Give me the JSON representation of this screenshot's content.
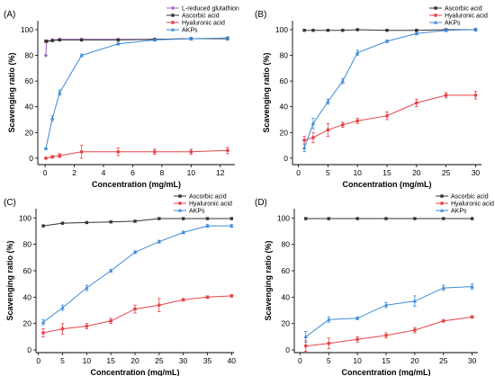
{
  "colors": {
    "black": "#333333",
    "red": "#e8454a",
    "blue": "#3d8bd9",
    "purple": "#9d5fc4"
  },
  "chart_data": [
    {
      "panel_label": "(A)",
      "type": "line",
      "xlabel": "Concentration (mg/mL)",
      "ylabel": "Scavenging ratio (%)",
      "xlim": [
        -0.5,
        13
      ],
      "ylim": [
        -5,
        107
      ],
      "xticks": [
        0,
        2,
        4,
        6,
        8,
        10,
        12
      ],
      "yticks": [
        0,
        20,
        40,
        60,
        80,
        100
      ],
      "legend_position": "top-right",
      "series": [
        {
          "name": "L-reduced glutathion",
          "color": "purple",
          "marker": "diamond",
          "x": [
            0.05,
            0.1,
            0.5,
            1,
            2.5,
            5,
            7.5,
            10,
            12.5
          ],
          "y": [
            80,
            91,
            92,
            92.5,
            92.5,
            92.5,
            92.5,
            93,
            93
          ],
          "err": [
            0,
            0,
            0,
            0,
            0,
            0,
            0,
            0,
            0
          ]
        },
        {
          "name": "Ascorbic acid",
          "color": "black",
          "marker": "square",
          "x": [
            0.05,
            0.1,
            0.5,
            1,
            2.5,
            5,
            7.5,
            10,
            12.5
          ],
          "y": [
            91,
            91,
            91.5,
            92,
            92,
            92,
            92.5,
            93,
            93
          ],
          "err": [
            0,
            0,
            0,
            0,
            0,
            0,
            0,
            0,
            0
          ]
        },
        {
          "name": "Hyaluronic acid",
          "color": "red",
          "marker": "circle",
          "x": [
            0.05,
            0.5,
            1,
            2.5,
            5,
            7.5,
            10,
            12.5
          ],
          "y": [
            0,
            1,
            2,
            5,
            5,
            5,
            5,
            6
          ],
          "err": [
            0,
            1,
            1.5,
            5,
            3,
            2,
            2,
            2.5
          ]
        },
        {
          "name": "AKPs",
          "color": "blue",
          "marker": "triangle",
          "x": [
            0.05,
            0.5,
            1,
            2.5,
            5,
            7.5,
            10,
            12.5
          ],
          "y": [
            7.5,
            31,
            51,
            80,
            89,
            92,
            93,
            93.5
          ],
          "err": [
            0.5,
            2,
            2,
            1,
            1,
            1,
            1,
            1
          ]
        }
      ]
    },
    {
      "panel_label": "(B)",
      "type": "line",
      "xlabel": "Concentration (mg/mL)",
      "ylabel": "Scavenging ratio (%)",
      "xlim": [
        -1,
        31
      ],
      "ylim": [
        -5,
        107
      ],
      "xticks": [
        0,
        5,
        10,
        15,
        20,
        25,
        30
      ],
      "yticks": [
        0,
        20,
        40,
        60,
        80,
        100
      ],
      "legend_position": "top-left",
      "series": [
        {
          "name": "Ascorbic acid",
          "color": "black",
          "marker": "square",
          "x": [
            1,
            2.5,
            5,
            7.5,
            10,
            15,
            20,
            25,
            30
          ],
          "y": [
            99.5,
            99.5,
            99.5,
            99.5,
            100,
            99.5,
            99.5,
            100,
            100
          ],
          "err": [
            0,
            0,
            0,
            0,
            0,
            0,
            0,
            0,
            0
          ]
        },
        {
          "name": "Hyaluronic acid",
          "color": "red",
          "marker": "circle",
          "x": [
            1,
            2.5,
            5,
            7.5,
            10,
            15,
            20,
            25,
            30
          ],
          "y": [
            14,
            16,
            22,
            26,
            29,
            33,
            43,
            49,
            49
          ],
          "err": [
            3,
            4,
            5,
            2,
            2,
            3,
            3,
            2,
            3
          ]
        },
        {
          "name": "AKPs",
          "color": "blue",
          "marker": "triangle",
          "x": [
            1,
            2.5,
            5,
            7.5,
            10,
            15,
            20,
            25,
            30
          ],
          "y": [
            8,
            27,
            44,
            60,
            82,
            91,
            97,
            99.5,
            100
          ],
          "err": [
            3,
            4,
            2,
            2,
            2,
            1,
            1,
            1,
            1
          ]
        }
      ]
    },
    {
      "panel_label": "(C)",
      "type": "line",
      "xlabel": "Concentration (mg/mL)",
      "ylabel": "Scavenging ratio (%)",
      "xlim": [
        -0.5,
        40.5
      ],
      "ylim": [
        -2,
        107
      ],
      "xticks": [
        0,
        5,
        10,
        15,
        20,
        25,
        30,
        35,
        40
      ],
      "yticks": [
        0,
        20,
        40,
        60,
        80,
        100
      ],
      "legend_position": "top-right",
      "series": [
        {
          "name": "Ascorbic acid",
          "color": "black",
          "marker": "square",
          "x": [
            1,
            5,
            10,
            15,
            20,
            25,
            30,
            35,
            40
          ],
          "y": [
            94,
            96,
            96.5,
            97,
            97.5,
            99.5,
            99.5,
            99.5,
            99.5
          ],
          "err": [
            0,
            0,
            0,
            0,
            0,
            0,
            0,
            0,
            0
          ]
        },
        {
          "name": "Hyaluronic acid",
          "color": "red",
          "marker": "circle",
          "x": [
            1,
            5,
            10,
            15,
            20,
            25,
            30,
            35,
            40
          ],
          "y": [
            13,
            16,
            18,
            22,
            31,
            34,
            38,
            40,
            41
          ],
          "err": [
            3,
            4,
            2,
            2,
            3,
            5,
            1,
            1,
            1
          ]
        },
        {
          "name": "AKPs",
          "color": "blue",
          "marker": "triangle",
          "x": [
            1,
            5,
            10,
            15,
            20,
            25,
            30,
            35,
            40
          ],
          "y": [
            21,
            32,
            47,
            60,
            74,
            82,
            89,
            94,
            94
          ],
          "err": [
            2,
            2,
            2,
            1,
            1,
            1,
            1,
            1,
            1
          ]
        }
      ]
    },
    {
      "panel_label": "(D)",
      "type": "line",
      "xlabel": "Concentration (mg/mL)",
      "ylabel": "Scavenging ratio (%)",
      "xlim": [
        -1,
        31
      ],
      "ylim": [
        -2,
        107
      ],
      "xticks": [
        0,
        5,
        10,
        15,
        20,
        25,
        30
      ],
      "yticks": [
        0,
        20,
        40,
        60,
        80,
        100
      ],
      "legend_position": "top-right",
      "series": [
        {
          "name": "Ascorbic acid",
          "color": "black",
          "marker": "square",
          "x": [
            1,
            5,
            10,
            15,
            20,
            25,
            30
          ],
          "y": [
            99.5,
            99.5,
            99.5,
            99.5,
            99.5,
            99.5,
            99.5
          ],
          "err": [
            0,
            0,
            0,
            0,
            0,
            0,
            0
          ]
        },
        {
          "name": "Hyaluronic acid",
          "color": "red",
          "marker": "circle",
          "x": [
            1,
            5,
            10,
            15,
            20,
            25,
            30
          ],
          "y": [
            3,
            5,
            8,
            11,
            15,
            22,
            25
          ],
          "err": [
            4,
            4,
            2,
            2,
            2,
            1,
            1
          ]
        },
        {
          "name": "AKPs",
          "color": "blue",
          "marker": "triangle",
          "x": [
            1,
            5,
            10,
            15,
            20,
            25,
            30
          ],
          "y": [
            10,
            23,
            24,
            34,
            37,
            47,
            48
          ],
          "err": [
            4,
            2,
            1,
            2,
            4,
            2,
            2
          ]
        }
      ]
    }
  ]
}
